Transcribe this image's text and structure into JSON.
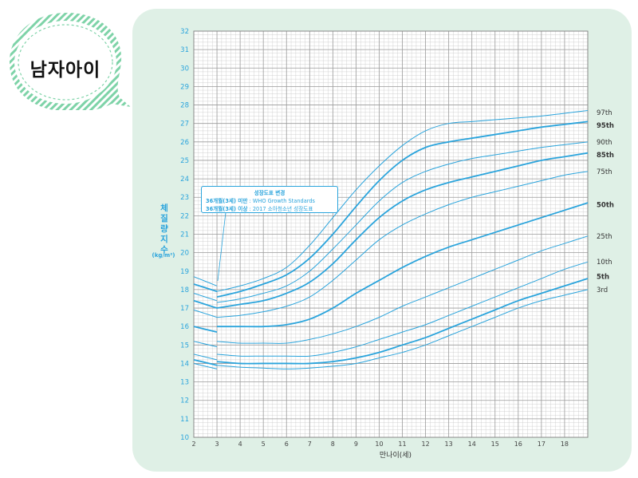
{
  "badge": {
    "text": "남자아이"
  },
  "callout": {
    "line1": "성장도표 변경",
    "line2_bold": "36개월(3세) 미만",
    "line2_text": " : WHO Growth Standards",
    "line3_bold": "36개월(3세) 이상",
    "line3_text": " : 2017 소아청소년 성장도표"
  },
  "colors": {
    "accent": "#2aa4dc",
    "grid": "#c8c8c8",
    "panel": "#dff0e6"
  },
  "chart_data": {
    "type": "line",
    "ylabel_chars": [
      "체",
      "질",
      "량",
      "지",
      "수"
    ],
    "ylabel_unit": "(kg/m²)",
    "xlabel": "만나이(세)",
    "xlim": [
      2,
      19
    ],
    "ylim": [
      10,
      32
    ],
    "x_ticks": [
      2,
      3,
      4,
      5,
      6,
      7,
      8,
      9,
      10,
      11,
      12,
      13,
      14,
      15,
      16,
      17,
      18
    ],
    "y_ticks": [
      10,
      11,
      12,
      13,
      14,
      15,
      16,
      17,
      18,
      19,
      20,
      21,
      22,
      23,
      24,
      25,
      26,
      27,
      28,
      29,
      30,
      31,
      32
    ],
    "grid": true,
    "who_segment": {
      "x": [
        2,
        3
      ],
      "series": [
        {
          "name": "97th",
          "values": [
            18.7,
            18.2
          ]
        },
        {
          "name": "95th",
          "values": [
            18.3,
            17.9
          ]
        },
        {
          "name": "90th",
          "values": [
            17.8,
            17.4
          ]
        },
        {
          "name": "85th",
          "values": [
            17.4,
            17.0
          ]
        },
        {
          "name": "75th",
          "values": [
            16.9,
            16.5
          ]
        },
        {
          "name": "50th",
          "values": [
            16.0,
            15.7
          ]
        },
        {
          "name": "25th",
          "values": [
            15.2,
            14.9
          ]
        },
        {
          "name": "10th",
          "values": [
            14.5,
            14.2
          ]
        },
        {
          "name": "5th",
          "values": [
            14.2,
            13.9
          ]
        },
        {
          "name": "3rd",
          "values": [
            14.0,
            13.7
          ]
        }
      ]
    },
    "x": [
      3,
      4,
      5,
      6,
      7,
      8,
      9,
      10,
      11,
      12,
      13,
      14,
      15,
      16,
      17,
      18,
      19
    ],
    "series": [
      {
        "name": "97th",
        "values": [
          17.9,
          18.2,
          18.6,
          19.2,
          20.4,
          21.9,
          23.4,
          24.7,
          25.8,
          26.6,
          27.0,
          27.1,
          27.2,
          27.3,
          27.4,
          27.55,
          27.7
        ],
        "bold": false
      },
      {
        "name": "95th",
        "values": [
          17.6,
          17.9,
          18.3,
          18.8,
          19.7,
          21.0,
          22.5,
          23.9,
          25.0,
          25.7,
          26.0,
          26.2,
          26.4,
          26.6,
          26.8,
          26.95,
          27.1
        ],
        "bold": true
      },
      {
        "name": "90th",
        "values": [
          17.3,
          17.5,
          17.8,
          18.2,
          19.0,
          20.2,
          21.5,
          22.8,
          23.8,
          24.4,
          24.8,
          25.1,
          25.3,
          25.5,
          25.7,
          25.85,
          26.0
        ],
        "bold": false
      },
      {
        "name": "85th",
        "values": [
          17.0,
          17.2,
          17.4,
          17.8,
          18.4,
          19.4,
          20.7,
          21.9,
          22.8,
          23.4,
          23.8,
          24.1,
          24.4,
          24.7,
          25.0,
          25.2,
          25.4
        ],
        "bold": true
      },
      {
        "name": "75th",
        "values": [
          16.5,
          16.6,
          16.8,
          17.1,
          17.6,
          18.5,
          19.6,
          20.7,
          21.5,
          22.1,
          22.6,
          23.0,
          23.3,
          23.6,
          23.9,
          24.2,
          24.4
        ],
        "bold": false
      },
      {
        "name": "50th",
        "values": [
          16.0,
          16.0,
          16.0,
          16.1,
          16.4,
          17.0,
          17.8,
          18.5,
          19.2,
          19.8,
          20.3,
          20.7,
          21.1,
          21.5,
          21.9,
          22.3,
          22.7
        ],
        "bold": true
      },
      {
        "name": "25th",
        "values": [
          15.2,
          15.1,
          15.1,
          15.1,
          15.3,
          15.6,
          16.0,
          16.5,
          17.1,
          17.6,
          18.1,
          18.6,
          19.1,
          19.6,
          20.1,
          20.5,
          20.9
        ],
        "bold": false
      },
      {
        "name": "10th",
        "values": [
          14.5,
          14.4,
          14.4,
          14.4,
          14.4,
          14.6,
          14.9,
          15.3,
          15.7,
          16.1,
          16.6,
          17.1,
          17.6,
          18.1,
          18.6,
          19.1,
          19.5
        ],
        "bold": false
      },
      {
        "name": "5th",
        "values": [
          14.1,
          14.0,
          14.0,
          14.0,
          14.0,
          14.1,
          14.3,
          14.6,
          15.0,
          15.4,
          15.9,
          16.4,
          16.9,
          17.4,
          17.8,
          18.2,
          18.6
        ],
        "bold": true
      },
      {
        "name": "3rd",
        "values": [
          13.9,
          13.8,
          13.75,
          13.7,
          13.75,
          13.85,
          14.0,
          14.3,
          14.6,
          15.0,
          15.5,
          16.0,
          16.5,
          17.0,
          17.4,
          17.7,
          18.0
        ],
        "bold": false
      }
    ],
    "label_y": {
      "97th": 27.6,
      "95th": 26.9,
      "90th": 26.0,
      "85th": 25.3,
      "75th": 24.4,
      "50th": 22.6,
      "25th": 20.9,
      "10th": 19.5,
      "5th": 18.7,
      "3rd": 18.0
    }
  }
}
